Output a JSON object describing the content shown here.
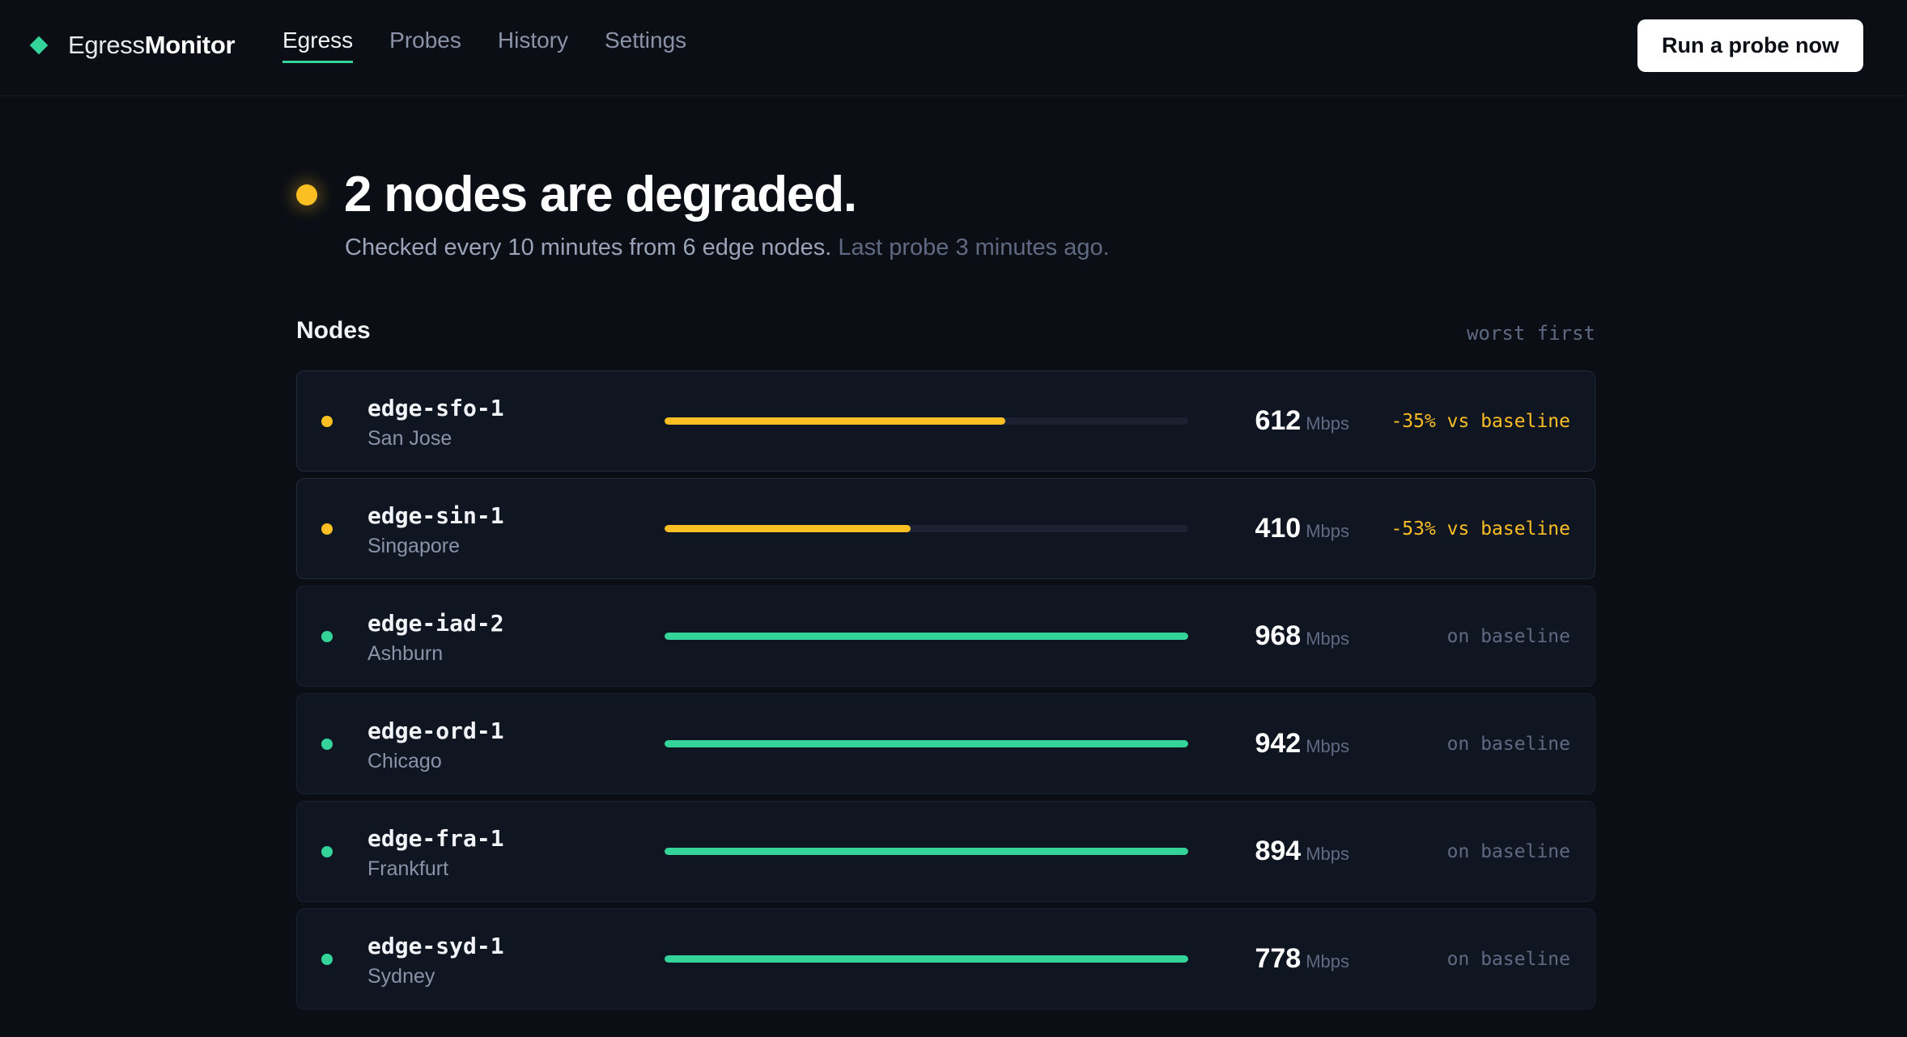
{
  "app": {
    "brand_light": "Egress",
    "brand_bold": "Monitor",
    "brand_icon": "diamond-icon",
    "accent": "#34d399"
  },
  "nav": {
    "tabs": [
      {
        "label": "Egress",
        "active": true
      },
      {
        "label": "Probes",
        "active": false
      },
      {
        "label": "History",
        "active": false
      },
      {
        "label": "Settings",
        "active": false
      }
    ],
    "run_button": "Run a probe now"
  },
  "status": {
    "title": "2 nodes are degraded.",
    "subtitle": "Checked every 10 minutes from 6 edge nodes.",
    "last_probe": "Last probe 3 minutes ago.",
    "color": "#fbbf24"
  },
  "section": {
    "title": "Nodes",
    "sort": "worst first"
  },
  "colors": {
    "degraded": "#fbbf24",
    "healthy": "#34d399",
    "baseline_text": "#5f6a82"
  },
  "nodes": [
    {
      "name": "edge-sfo-1",
      "city": "San Jose",
      "value": "612",
      "unit": "Mbps",
      "delta": "-35% vs baseline",
      "state": "degraded",
      "fill": 0.65
    },
    {
      "name": "edge-sin-1",
      "city": "Singapore",
      "value": "410",
      "unit": "Mbps",
      "delta": "-53% vs baseline",
      "state": "degraded",
      "fill": 0.47
    },
    {
      "name": "edge-iad-2",
      "city": "Ashburn",
      "value": "968",
      "unit": "Mbps",
      "delta": "on baseline",
      "state": "healthy",
      "fill": 1.0
    },
    {
      "name": "edge-ord-1",
      "city": "Chicago",
      "value": "942",
      "unit": "Mbps",
      "delta": "on baseline",
      "state": "healthy",
      "fill": 1.0
    },
    {
      "name": "edge-fra-1",
      "city": "Frankfurt",
      "value": "894",
      "unit": "Mbps",
      "delta": "on baseline",
      "state": "healthy",
      "fill": 1.0
    },
    {
      "name": "edge-syd-1",
      "city": "Sydney",
      "value": "778",
      "unit": "Mbps",
      "delta": "on baseline",
      "state": "healthy",
      "fill": 1.0
    }
  ]
}
